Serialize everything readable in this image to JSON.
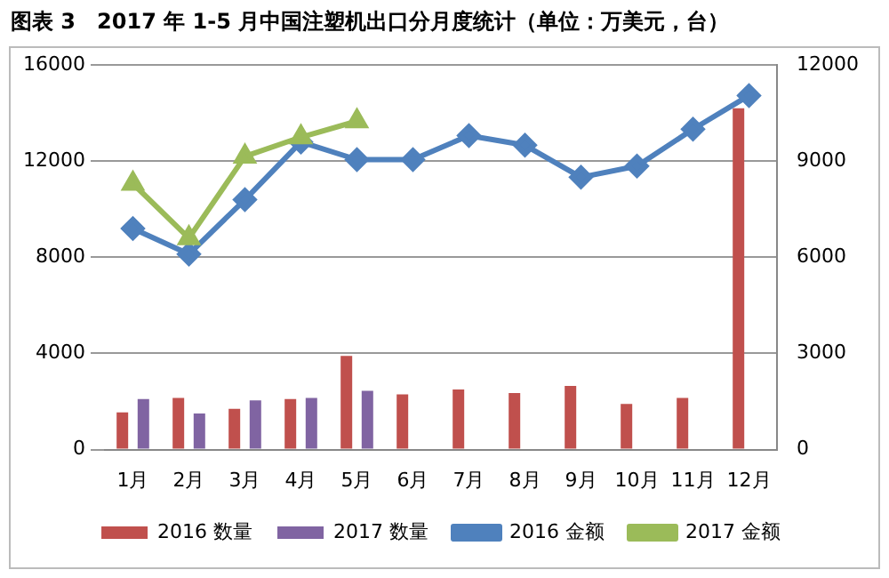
{
  "chart_data": {
    "type": "bar",
    "title": "图表 3　2017 年 1-5 月中国注塑机出口分月度统计（单位：万美元，台）",
    "categories": [
      "1月",
      "2月",
      "3月",
      "4月",
      "5月",
      "6月",
      "7月",
      "8月",
      "9月",
      "10月",
      "11月",
      "12月"
    ],
    "series": [
      {
        "name": "2016 数量",
        "color": "#c0504d",
        "values": [
          1550,
          2150,
          1700,
          2100,
          3900,
          2300,
          2500,
          2350,
          2650,
          1900,
          2150,
          14200
        ]
      },
      {
        "name": "2017 数量",
        "color": "#8064a2",
        "values": [
          2100,
          1500,
          2050,
          2150,
          2450,
          null,
          null,
          null,
          null,
          null,
          null,
          null
        ]
      },
      {
        "name": "2016 金额",
        "type": "line",
        "axis": "y2",
        "marker": "diamond",
        "color": "#4f81bd",
        "values": [
          6900,
          6100,
          7800,
          9600,
          9050,
          9050,
          9800,
          9500,
          8500,
          8850,
          10000,
          11050
        ]
      },
      {
        "name": "2017 金额",
        "type": "line",
        "axis": "y2",
        "marker": "triangle",
        "color": "#9bbb59",
        "values": [
          8300,
          6600,
          9150,
          9750,
          10250,
          null,
          null,
          null,
          null,
          null,
          null,
          null
        ]
      }
    ],
    "ylim": [
      0,
      16000
    ],
    "yticks": [
      0,
      4000,
      8000,
      12000,
      16000
    ],
    "y2lim": [
      0,
      12000
    ],
    "y2ticks": [
      0,
      3000,
      6000,
      9000,
      12000
    ],
    "grid": "y",
    "legend": "bottom"
  }
}
